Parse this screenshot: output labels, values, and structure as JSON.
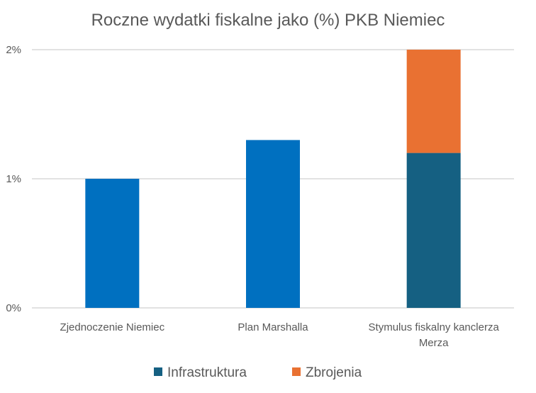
{
  "chart_data": {
    "type": "bar",
    "stacked": true,
    "title": "Roczne wydatki fiskalne jako (%) PKB Niemiec",
    "categories": [
      [
        "Zjednoczenie Niemiec"
      ],
      [
        "Plan Marshalla"
      ],
      [
        "Stymulus fiskalny kanclerza",
        "Merza"
      ]
    ],
    "series": [
      {
        "name": "Infrastruktura",
        "values": [
          1.0,
          1.3,
          1.2
        ],
        "color": "#156082",
        "point_colors": [
          "#0070C0",
          "#0070C0",
          "#156082"
        ]
      },
      {
        "name": "Zbrojenia",
        "values": [
          0,
          0,
          0.8
        ],
        "color": "#E97132"
      }
    ],
    "yticks": [
      0,
      1,
      2
    ],
    "ytick_labels": [
      "0%",
      "1%",
      "2%"
    ],
    "ylim": [
      0,
      2
    ],
    "xlabel": "",
    "ylabel": "",
    "grid": true,
    "legend_position": "bottom"
  }
}
